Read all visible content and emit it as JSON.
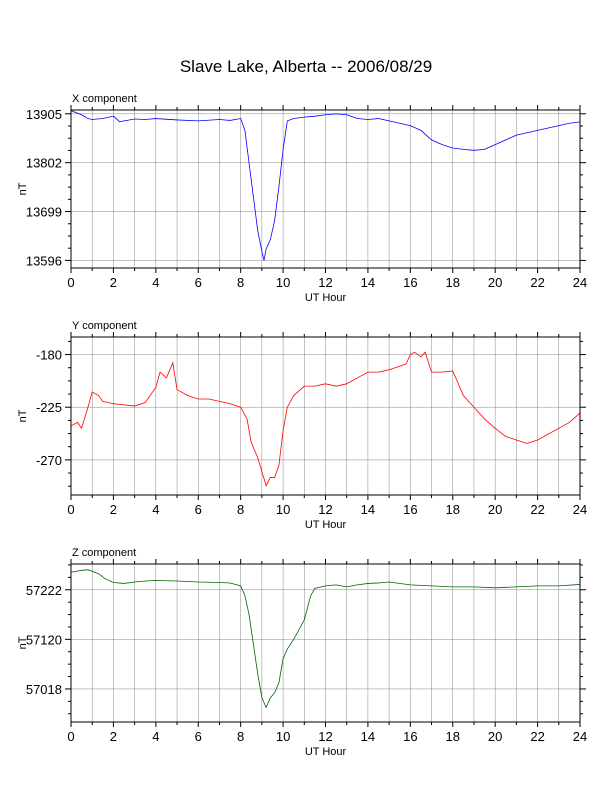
{
  "title": "Slave Lake, Alberta -- 2006/08/29",
  "chart_data": [
    {
      "type": "line",
      "title": "X component",
      "xlabel": "UT Hour",
      "ylabel": "nT",
      "xlim": [
        0,
        24
      ],
      "ylim": [
        13580,
        13913
      ],
      "xticks": [
        0,
        2,
        4,
        6,
        8,
        10,
        12,
        14,
        16,
        18,
        20,
        22,
        24
      ],
      "yticks": [
        13596,
        13699,
        13802,
        13905
      ],
      "grid": true,
      "color": "#0000ff",
      "series": [
        {
          "x": [
            0,
            0.2,
            0.5,
            0.8,
            1.0,
            1.5,
            2.0,
            2.3,
            2.5,
            3.0,
            3.5,
            4.0,
            5.0,
            6.0,
            7.0,
            7.5,
            8.0,
            8.2,
            8.4,
            8.6,
            8.8,
            9.0,
            9.1,
            9.2,
            9.4,
            9.6,
            9.8,
            10.0,
            10.2,
            10.5,
            11.0,
            11.5,
            12.0,
            12.5,
            13.0,
            13.5,
            14.0,
            14.5,
            15.0,
            15.5,
            16.0,
            16.5,
            17.0,
            17.5,
            18.0,
            18.5,
            19.0,
            19.5,
            20.0,
            20.5,
            21.0,
            21.5,
            22.0,
            22.5,
            23.0,
            23.5,
            24.0
          ],
          "y": [
            13912,
            13908,
            13903,
            13895,
            13893,
            13895,
            13900,
            13888,
            13890,
            13894,
            13893,
            13895,
            13892,
            13890,
            13893,
            13891,
            13895,
            13870,
            13800,
            13730,
            13660,
            13615,
            13596,
            13620,
            13640,
            13680,
            13750,
            13830,
            13890,
            13895,
            13898,
            13900,
            13903,
            13905,
            13903,
            13895,
            13893,
            13895,
            13890,
            13885,
            13880,
            13870,
            13850,
            13840,
            13833,
            13830,
            13828,
            13830,
            13840,
            13850,
            13860,
            13865,
            13870,
            13875,
            13880,
            13885,
            13888
          ]
        }
      ]
    },
    {
      "type": "line",
      "title": "Y component",
      "xlabel": "UT Hour",
      "ylabel": "nT",
      "xlim": [
        0,
        24
      ],
      "ylim": [
        -300,
        -165
      ],
      "xticks": [
        0,
        2,
        4,
        6,
        8,
        10,
        12,
        14,
        16,
        18,
        20,
        22,
        24
      ],
      "yticks": [
        -180,
        -225,
        -270
      ],
      "grid": true,
      "color": "#ff0000",
      "series": [
        {
          "x": [
            0,
            0.3,
            0.5,
            0.8,
            1.0,
            1.3,
            1.5,
            2.0,
            2.5,
            3.0,
            3.5,
            4.0,
            4.2,
            4.5,
            4.8,
            5.0,
            5.5,
            6.0,
            6.5,
            7.0,
            7.5,
            8.0,
            8.3,
            8.5,
            8.8,
            9.0,
            9.2,
            9.4,
            9.6,
            9.8,
            10.0,
            10.2,
            10.5,
            11.0,
            11.5,
            12.0,
            12.5,
            13.0,
            13.5,
            14.0,
            14.5,
            15.0,
            15.5,
            15.8,
            16.0,
            16.2,
            16.5,
            16.7,
            17.0,
            17.5,
            18.0,
            18.5,
            19.0,
            19.5,
            20.0,
            20.5,
            21.0,
            21.5,
            22.0,
            22.5,
            23.0,
            23.5,
            24.0
          ],
          "y": [
            -241,
            -238,
            -243,
            -225,
            -212,
            -215,
            -220,
            -222,
            -223,
            -224,
            -221,
            -208,
            -195,
            -200,
            -187,
            -210,
            -215,
            -218,
            -218,
            -220,
            -222,
            -225,
            -235,
            -255,
            -268,
            -280,
            -292,
            -285,
            -285,
            -275,
            -245,
            -225,
            -215,
            -207,
            -207,
            -205,
            -207,
            -205,
            -200,
            -195,
            -195,
            -193,
            -190,
            -188,
            -180,
            -178,
            -182,
            -178,
            -195,
            -195,
            -194,
            -215,
            -225,
            -235,
            -243,
            -250,
            -253,
            -256,
            -253,
            -248,
            -243,
            -238,
            -230
          ]
        }
      ]
    },
    {
      "type": "line",
      "title": "Z component",
      "xlabel": "UT Hour",
      "ylabel": "nT",
      "xlim": [
        0,
        24
      ],
      "ylim": [
        56950,
        57275
      ],
      "xticks": [
        0,
        2,
        4,
        6,
        8,
        10,
        12,
        14,
        16,
        18,
        20,
        22,
        24
      ],
      "yticks": [
        57018,
        57120,
        57222
      ],
      "grid": true,
      "color": "#006400",
      "series": [
        {
          "x": [
            0,
            0.5,
            0.8,
            1.0,
            1.3,
            1.6,
            2.0,
            2.5,
            3.0,
            3.5,
            4.0,
            5.0,
            6.0,
            7.0,
            7.5,
            8.0,
            8.2,
            8.4,
            8.6,
            8.8,
            9.0,
            9.2,
            9.4,
            9.6,
            9.8,
            10.0,
            10.2,
            10.5,
            11.0,
            11.3,
            11.5,
            12.0,
            12.5,
            13.0,
            13.5,
            14.0,
            14.5,
            15.0,
            16.0,
            17.0,
            18.0,
            19.0,
            20.0,
            21.0,
            22.0,
            23.0,
            24.0
          ],
          "y": [
            57258,
            57262,
            57263,
            57260,
            57255,
            57245,
            57237,
            57235,
            57238,
            57240,
            57241,
            57240,
            57238,
            57237,
            57236,
            57230,
            57210,
            57170,
            57110,
            57050,
            57000,
            56980,
            57000,
            57010,
            57030,
            57080,
            57100,
            57120,
            57160,
            57210,
            57225,
            57230,
            57232,
            57228,
            57232,
            57235,
            57236,
            57238,
            57232,
            57230,
            57228,
            57228,
            57226,
            57228,
            57230,
            57230,
            57233
          ]
        }
      ]
    }
  ]
}
